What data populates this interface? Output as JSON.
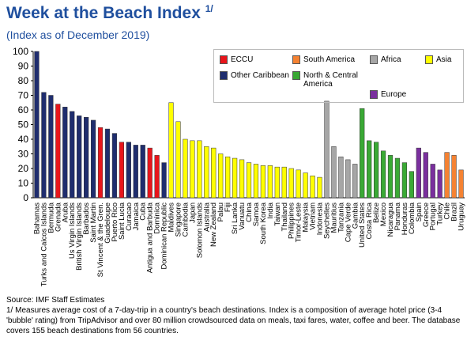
{
  "chart_data": {
    "type": "bar",
    "title": "Week at the Beach Index",
    "title_note": "1/",
    "subtitle": "(Index as of December 2019)",
    "source": "Source: IMF Staff Estimates",
    "note": "1/ Measures average cost of a 7-day-trip in a country's beach destinations. Index is a composition of average hotel price (3-4 'bubble' rating) from TripAdvisor and over 80 million crowdsourced data on meals, taxi fares, water, coffee and beer. The database covers 155 beach destinations from 56 countries.",
    "categories": [
      "Bahamas",
      "Turks and Caicos Islands",
      "Bermuda",
      "Grenada",
      "Aruba",
      "Us Virgin Islands",
      "British Virgin Islands",
      "Barbados",
      "Saint Martin",
      "St Vincent & the Gren.",
      "Guadeloupe",
      "Puerto Rico",
      "Saint Lucia",
      "Curacao",
      "Jamaica",
      "Cuba",
      "Antigua and Barbuda",
      "Dominica",
      "Dominican Republic",
      "Maldives",
      "Singapore",
      "Cambodia",
      "Japan",
      "Solomon Islands",
      "Australia",
      "New Zealand",
      "Palau",
      "Fiji",
      "Sri Lanka",
      "Vanuatu",
      "China",
      "Samoa",
      "South Korea",
      "India",
      "Taiwan",
      "Thailand",
      "Philippines",
      "Timor-Leste",
      "Malaysia",
      "Vietnam",
      "Indonesia",
      "Seychelles",
      "Mauritius",
      "Tanzania",
      "Cape Verde",
      "Gambia",
      "United States",
      "Costa Rica",
      "Belize",
      "Mexico",
      "Nicaragua",
      "Panama",
      "Honduras",
      "Colombia",
      "Spain",
      "Greece",
      "Portugal",
      "Turkey",
      "Chile",
      "Brazil",
      "Uruguay"
    ],
    "values": [
      100,
      72,
      70,
      64,
      62,
      59,
      56,
      55,
      53,
      48,
      47,
      44,
      38,
      38,
      36,
      36,
      34,
      29,
      24,
      65,
      52,
      40,
      39,
      39,
      35,
      34,
      30,
      28,
      27,
      26,
      24,
      23,
      22,
      22,
      21,
      21,
      20,
      19,
      17,
      15,
      14,
      66,
      35,
      28,
      26,
      23,
      61,
      39,
      38,
      32,
      29,
      27,
      24,
      18,
      34,
      31,
      23,
      19,
      31,
      29,
      19
    ],
    "colors": [
      "#1f2d6e",
      "#1f2d6e",
      "#1f2d6e",
      "#e8151b",
      "#1f2d6e",
      "#1f2d6e",
      "#1f2d6e",
      "#1f2d6e",
      "#1f2d6e",
      "#e8151b",
      "#1f2d6e",
      "#1f2d6e",
      "#e8151b",
      "#1f2d6e",
      "#1f2d6e",
      "#1f2d6e",
      "#e8151b",
      "#e8151b",
      "#1f2d6e",
      "#ffff00",
      "#ffff00",
      "#ffff00",
      "#ffff00",
      "#ffff00",
      "#ffff00",
      "#ffff00",
      "#ffff00",
      "#ffff00",
      "#ffff00",
      "#ffff00",
      "#ffff00",
      "#ffff00",
      "#ffff00",
      "#ffff00",
      "#ffff00",
      "#ffff00",
      "#ffff00",
      "#ffff00",
      "#ffff00",
      "#ffff00",
      "#ffff00",
      "#a6a6a6",
      "#a6a6a6",
      "#a6a6a6",
      "#a6a6a6",
      "#a6a6a6",
      "#3aa935",
      "#3aa935",
      "#3aa935",
      "#3aa935",
      "#3aa935",
      "#3aa935",
      "#3aa935",
      "#3aa935",
      "#7a2f9e",
      "#7a2f9e",
      "#7a2f9e",
      "#7a2f9e",
      "#f58232",
      "#f58232",
      "#f58232"
    ],
    "legend": [
      {
        "name": "ECCU",
        "color": "#e8151b"
      },
      {
        "name": "Other Caribbean",
        "color": "#1f2d6e"
      },
      {
        "name": "South America",
        "color": "#f58232"
      },
      {
        "name": "North & Central America",
        "color": "#3aa935"
      },
      {
        "name": "Africa",
        "color": "#a6a6a6"
      },
      {
        "name": "Europe",
        "color": "#7a2f9e"
      },
      {
        "name": "Asia",
        "color": "#ffff00"
      }
    ],
    "ylim": [
      0,
      100
    ],
    "yticks": [
      0,
      10,
      20,
      30,
      40,
      50,
      60,
      70,
      80,
      90,
      100
    ]
  }
}
